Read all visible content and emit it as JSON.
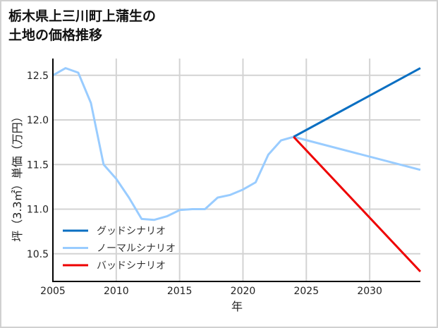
{
  "title_line1": "栃木県上三川町上蒲生の",
  "title_line2": "土地の価格推移",
  "chart_data": {
    "type": "line",
    "title": "栃木県上三川町上蒲生の土地の価格推移",
    "xlabel": "年",
    "ylabel": "坪（3.3㎡）単価（万円）",
    "xlim": [
      2005,
      2034
    ],
    "ylim": [
      10.22,
      12.72
    ],
    "xticks": [
      2005,
      2010,
      2015,
      2020,
      2025,
      2030
    ],
    "xtick_labels": [
      "2005",
      "2010",
      "2015",
      "2020",
      "2025",
      "2030"
    ],
    "yticks": [
      10.5,
      11.0,
      11.5,
      12.0,
      12.5
    ],
    "ytick_labels": [
      "10.5",
      "11.0",
      "11.5",
      "12.0",
      "12.5"
    ],
    "grid": true,
    "legend_position": "lower left",
    "series": [
      {
        "name": "グッドシナリオ",
        "color": "#0a6fc2",
        "x": [
          2024,
          2034
        ],
        "values": [
          11.81,
          12.58
        ]
      },
      {
        "name": "ノーマルシナリオ",
        "color": "#99ccff",
        "x": [
          2005,
          2006,
          2007,
          2008,
          2009,
          2010,
          2011,
          2012,
          2013,
          2014,
          2015,
          2016,
          2017,
          2018,
          2019,
          2020,
          2021,
          2022,
          2023,
          2024,
          2034
        ],
        "values": [
          12.5,
          12.58,
          12.53,
          12.19,
          11.5,
          11.34,
          11.13,
          10.89,
          10.88,
          10.92,
          10.99,
          11.0,
          11.0,
          11.13,
          11.16,
          11.22,
          11.3,
          11.61,
          11.77,
          11.81,
          11.44
        ]
      },
      {
        "name": "バッドシナリオ",
        "color": "#ee0000",
        "x": [
          2024,
          2034
        ],
        "values": [
          11.81,
          10.3
        ]
      }
    ]
  }
}
